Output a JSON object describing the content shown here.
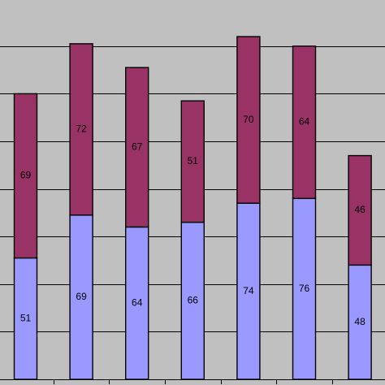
{
  "chart_data": {
    "type": "bar",
    "stacked": true,
    "title": "",
    "xlabel": "",
    "ylabel": "",
    "ylim": [
      0,
      160
    ],
    "grid": true,
    "legend": "none",
    "categories": [
      "",
      "",
      "",
      "",
      "",
      "",
      ""
    ],
    "series": [
      {
        "color": "#9999ff",
        "values": [
          51,
          69,
          64,
          66,
          74,
          76,
          48
        ]
      },
      {
        "color": "#993366",
        "values": [
          69,
          72,
          67,
          51,
          70,
          64,
          46
        ]
      }
    ],
    "background": "#c0c0c0"
  }
}
